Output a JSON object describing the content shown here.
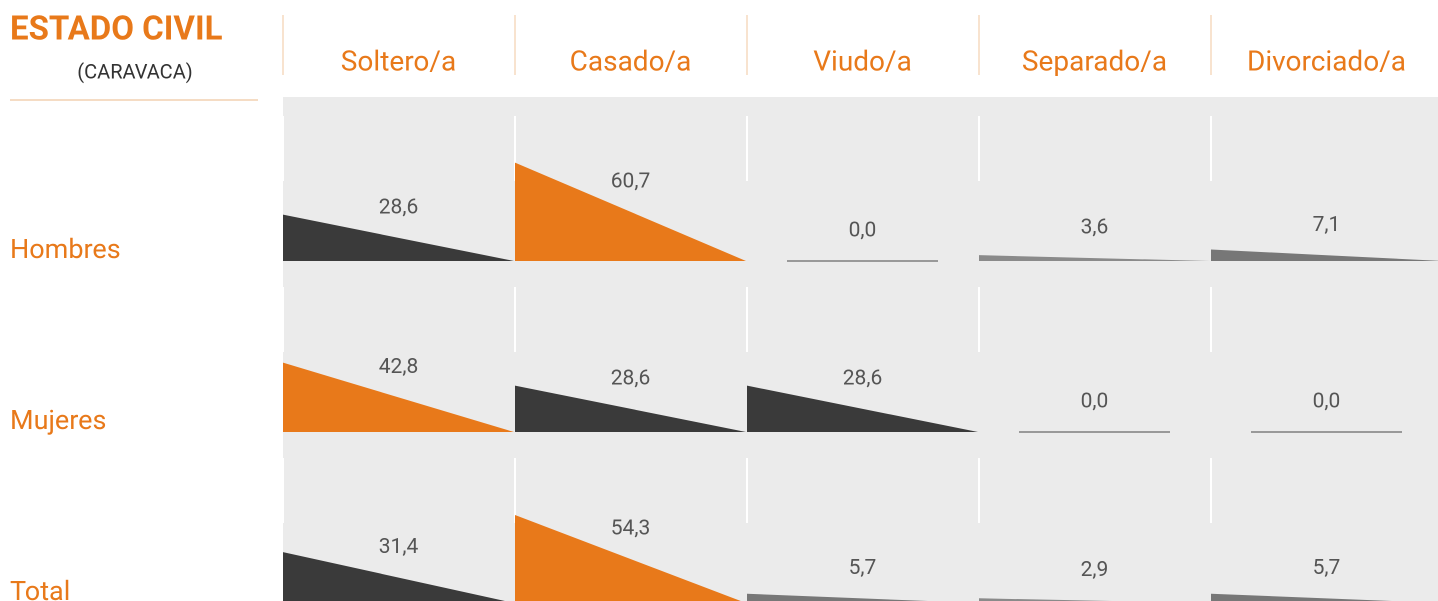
{
  "chart_data": {
    "type": "bar",
    "title": "ESTADO CIVIL",
    "subtitle": "(CARAVACA)",
    "categories": [
      "Soltero/a",
      "Casado/a",
      "Viudo/a",
      "Separado/a",
      "Divorciado/a"
    ],
    "series": [
      {
        "name": "Hombres",
        "values": [
          28.6,
          60.7,
          0.0,
          3.6,
          7.1
        ],
        "value_labels": [
          "28,6",
          "60,7",
          "0,0",
          "3,6",
          "7,1"
        ],
        "colors": [
          "#3a3a3a",
          "#e8791a",
          "#999999",
          "#8a8a8a",
          "#777777"
        ]
      },
      {
        "name": "Mujeres",
        "values": [
          42.8,
          28.6,
          28.6,
          0.0,
          0.0
        ],
        "value_labels": [
          "42,8",
          "28,6",
          "28,6",
          "0,0",
          "0,0"
        ],
        "colors": [
          "#e8791a",
          "#3a3a3a",
          "#3a3a3a",
          "#999999",
          "#999999"
        ]
      },
      {
        "name": "Total",
        "values": [
          31.4,
          54.3,
          5.7,
          2.9,
          5.7
        ],
        "value_labels": [
          "31,4",
          "54,3",
          "5,7",
          "2,9",
          "5,7"
        ],
        "colors": [
          "#3a3a3a",
          "#e8791a",
          "#777777",
          "#8a8a8a",
          "#777777"
        ]
      }
    ]
  }
}
